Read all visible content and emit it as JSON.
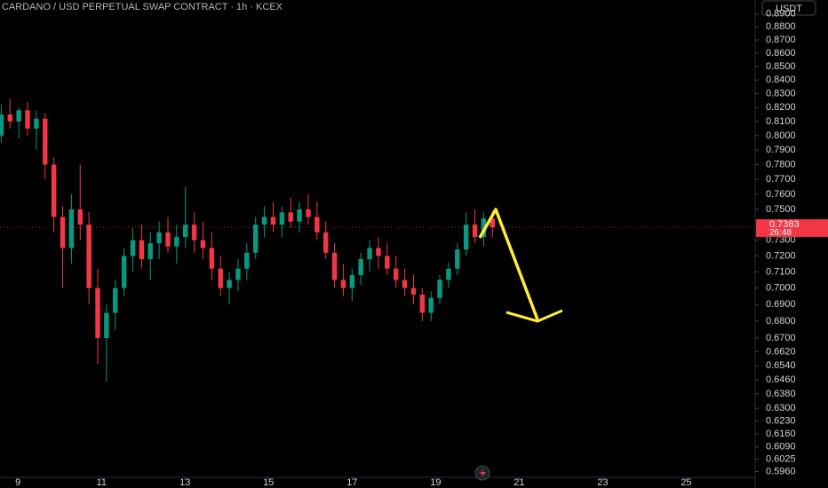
{
  "chart_data": {
    "type": "candlestick",
    "title": "CARDANO / USD PERPETUAL SWAP CONTRACT · 1h · KCEX",
    "currency": "USDT",
    "log_scale": true,
    "up_color": "#089981",
    "down_color": "#f23645",
    "x": [
      8.6,
      8.81,
      9.02,
      9.23,
      9.44,
      9.65,
      9.86,
      10.07,
      10.28,
      10.49,
      10.7,
      10.91,
      11.12,
      11.33,
      11.54,
      11.75,
      11.96,
      12.17,
      12.38,
      12.59,
      12.8,
      13.01,
      13.22,
      13.43,
      13.64,
      13.85,
      14.06,
      14.27,
      14.48,
      14.69,
      14.9,
      15.11,
      15.32,
      15.53,
      15.74,
      15.95,
      16.16,
      16.37,
      16.58,
      16.79,
      17.0,
      17.21,
      17.42,
      17.63,
      17.84,
      18.05,
      18.26,
      18.47,
      18.68,
      18.89,
      19.1,
      19.31,
      19.52,
      19.73,
      19.94,
      20.15,
      20.36
    ],
    "open": [
      0.8,
      0.815,
      0.81,
      0.818,
      0.805,
      0.812,
      0.78,
      0.745,
      0.725,
      0.75,
      0.74,
      0.7,
      0.67,
      0.685,
      0.7,
      0.72,
      0.73,
      0.718,
      0.728,
      0.735,
      0.726,
      0.732,
      0.74,
      0.73,
      0.725,
      0.712,
      0.7,
      0.705,
      0.712,
      0.722,
      0.74,
      0.745,
      0.74,
      0.748,
      0.742,
      0.75,
      0.745,
      0.735,
      0.722,
      0.705,
      0.7,
      0.708,
      0.718,
      0.725,
      0.72,
      0.712,
      0.705,
      0.7,
      0.696,
      0.685,
      0.694,
      0.705,
      0.712,
      0.724,
      0.74,
      0.732,
      0.744
    ],
    "high": [
      0.822,
      0.826,
      0.82,
      0.824,
      0.818,
      0.816,
      0.785,
      0.752,
      0.76,
      0.78,
      0.748,
      0.712,
      0.69,
      0.705,
      0.725,
      0.738,
      0.74,
      0.735,
      0.742,
      0.745,
      0.74,
      0.765,
      0.748,
      0.742,
      0.735,
      0.72,
      0.71,
      0.718,
      0.728,
      0.745,
      0.752,
      0.755,
      0.752,
      0.758,
      0.755,
      0.76,
      0.755,
      0.742,
      0.728,
      0.715,
      0.712,
      0.722,
      0.73,
      0.732,
      0.728,
      0.72,
      0.712,
      0.708,
      0.7,
      0.698,
      0.708,
      0.716,
      0.728,
      0.748,
      0.75,
      0.748,
      0.749
    ],
    "low": [
      0.795,
      0.805,
      0.798,
      0.8,
      0.79,
      0.77,
      0.735,
      0.7,
      0.715,
      0.73,
      0.69,
      0.655,
      0.645,
      0.675,
      0.695,
      0.71,
      0.712,
      0.705,
      0.718,
      0.722,
      0.715,
      0.725,
      0.722,
      0.718,
      0.705,
      0.695,
      0.69,
      0.698,
      0.705,
      0.718,
      0.732,
      0.735,
      0.732,
      0.738,
      0.735,
      0.74,
      0.73,
      0.718,
      0.7,
      0.695,
      0.692,
      0.702,
      0.71,
      0.712,
      0.708,
      0.7,
      0.695,
      0.69,
      0.68,
      0.68,
      0.69,
      0.7,
      0.708,
      0.72,
      0.728,
      0.726,
      0.732
    ],
    "close": [
      0.815,
      0.81,
      0.818,
      0.805,
      0.812,
      0.78,
      0.745,
      0.725,
      0.75,
      0.74,
      0.7,
      0.67,
      0.685,
      0.7,
      0.72,
      0.73,
      0.718,
      0.728,
      0.735,
      0.726,
      0.732,
      0.74,
      0.73,
      0.725,
      0.712,
      0.7,
      0.705,
      0.712,
      0.722,
      0.74,
      0.745,
      0.74,
      0.748,
      0.742,
      0.75,
      0.745,
      0.735,
      0.722,
      0.705,
      0.7,
      0.708,
      0.718,
      0.725,
      0.72,
      0.712,
      0.705,
      0.7,
      0.696,
      0.685,
      0.694,
      0.705,
      0.712,
      0.724,
      0.74,
      0.732,
      0.744,
      0.7383
    ],
    "last_price": {
      "value": 0.7383,
      "label": "0.7383"
    },
    "countdown": "26:48",
    "xlim": [
      8.57,
      26.65
    ],
    "xticks": [
      9,
      11,
      13,
      15,
      17,
      19,
      21,
      23,
      25
    ],
    "ylim": [
      0.593,
      0.901
    ],
    "yticks": [
      {
        "value": 0.89,
        "label": "0.8900"
      },
      {
        "value": 0.88,
        "label": "0.8800"
      },
      {
        "value": 0.87,
        "label": "0.8700"
      },
      {
        "value": 0.86,
        "label": "0.8600"
      },
      {
        "value": 0.85,
        "label": "0.8500"
      },
      {
        "value": 0.84,
        "label": "0.8400"
      },
      {
        "value": 0.83,
        "label": "0.8300"
      },
      {
        "value": 0.82,
        "label": "0.8200"
      },
      {
        "value": 0.81,
        "label": "0.8100"
      },
      {
        "value": 0.8,
        "label": "0.8000"
      },
      {
        "value": 0.79,
        "label": "0.7900"
      },
      {
        "value": 0.78,
        "label": "0.7800"
      },
      {
        "value": 0.77,
        "label": "0.7700"
      },
      {
        "value": 0.76,
        "label": "0.7600"
      },
      {
        "value": 0.75,
        "label": "0.7500"
      },
      {
        "value": 0.73,
        "label": "0.7300"
      },
      {
        "value": 0.72,
        "label": "0.7200"
      },
      {
        "value": 0.71,
        "label": "0.7100"
      },
      {
        "value": 0.7,
        "label": "0.7000"
      },
      {
        "value": 0.69,
        "label": "0.6900"
      },
      {
        "value": 0.68,
        "label": "0.6800"
      },
      {
        "value": 0.67,
        "label": "0.6700"
      },
      {
        "value": 0.662,
        "label": "0.6620"
      },
      {
        "value": 0.654,
        "label": "0.6540"
      },
      {
        "value": 0.646,
        "label": "0.6460"
      },
      {
        "value": 0.638,
        "label": "0.6380"
      },
      {
        "value": 0.63,
        "label": "0.6300"
      },
      {
        "value": 0.623,
        "label": "0.6230"
      },
      {
        "value": 0.616,
        "label": "0.6160"
      },
      {
        "value": 0.609,
        "label": "0.6090"
      },
      {
        "value": 0.6025,
        "label": "0.6025"
      },
      {
        "value": 0.596,
        "label": "0.5960"
      }
    ]
  }
}
